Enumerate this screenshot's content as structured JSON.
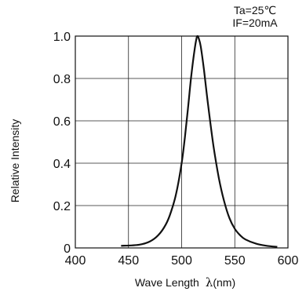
{
  "chart_data": {
    "type": "line",
    "title": "",
    "conditions": [
      "Ta=25℃",
      "IF=20mA"
    ],
    "xlabel_text": "Wave Length",
    "xlabel_symbol": "λ",
    "xlabel_unit": "(nm)",
    "ylabel": "Relative Intensity",
    "xlim": [
      400,
      600
    ],
    "ylim": [
      0,
      1.0
    ],
    "xticks": [
      "400",
      "450",
      "500",
      "550",
      "600"
    ],
    "yticks": [
      "0",
      "0.2",
      "0.4",
      "0.6",
      "0.8",
      "1.0"
    ],
    "grid": true,
    "series": [
      {
        "color": "#111111",
        "x": [
          443,
          460,
          470,
          478,
          485,
          490,
          495,
          500,
          503,
          506,
          509,
          512,
          514,
          515,
          516,
          518,
          521,
          525,
          530,
          535,
          540,
          545,
          550,
          555,
          560,
          570,
          580,
          590
        ],
        "y": [
          0.01,
          0.015,
          0.03,
          0.06,
          0.11,
          0.17,
          0.26,
          0.4,
          0.52,
          0.66,
          0.81,
          0.93,
          0.99,
          1.0,
          0.99,
          0.95,
          0.84,
          0.67,
          0.48,
          0.33,
          0.22,
          0.14,
          0.09,
          0.06,
          0.04,
          0.02,
          0.01,
          0.005
        ]
      }
    ]
  }
}
